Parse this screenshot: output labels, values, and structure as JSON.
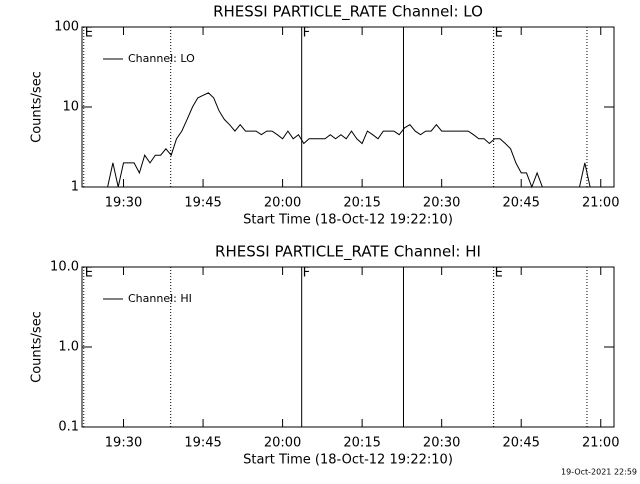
{
  "chart_data": [
    {
      "type": "line",
      "title": "RHESSI PARTICLE_RATE Channel: LO",
      "xlabel": "Start Time (18-Oct-12 19:22:10)",
      "ylabel": "Counts/sec",
      "log_y": true,
      "legend": "upper left",
      "xlim": [
        1162.17,
        1262.5
      ],
      "ylim": [
        1,
        100
      ],
      "xticks": [
        {
          "value": 1170,
          "label": "19:30"
        },
        {
          "value": 1185,
          "label": "19:45"
        },
        {
          "value": 1200,
          "label": "20:00"
        },
        {
          "value": 1215,
          "label": "20:15"
        },
        {
          "value": 1230,
          "label": "20:30"
        },
        {
          "value": 1245,
          "label": "20:45"
        },
        {
          "value": 1260,
          "label": "21:00"
        }
      ],
      "yticks": [
        1,
        10,
        100
      ],
      "annotations": [
        {
          "x": 1162.5,
          "label": "E",
          "line": "dotted"
        },
        {
          "x": 1178.9,
          "line": "dotted"
        },
        {
          "x": 1203.6,
          "label": "F",
          "line": "solid"
        },
        {
          "x": 1222.8,
          "line": "solid"
        },
        {
          "x": 1239.8,
          "label": "E",
          "line": "dotted"
        },
        {
          "x": 1257.4,
          "line": "dotted"
        }
      ],
      "series": [
        {
          "name": "Channel: LO",
          "color": "#000000",
          "x": [
            1163,
            1164,
            1165,
            1166,
            1167,
            1168,
            1169,
            1170,
            1171,
            1172,
            1173,
            1174,
            1175,
            1176,
            1177,
            1178,
            1179,
            1180,
            1181,
            1182,
            1183,
            1184,
            1185,
            1186,
            1187,
            1188,
            1189,
            1190,
            1191,
            1192,
            1193,
            1194,
            1195,
            1196,
            1197,
            1198,
            1199,
            1200,
            1201,
            1202,
            1203,
            1204,
            1205,
            1206,
            1207,
            1208,
            1209,
            1210,
            1211,
            1212,
            1213,
            1214,
            1215,
            1216,
            1217,
            1218,
            1219,
            1220,
            1221,
            1222,
            1223,
            1224,
            1225,
            1226,
            1227,
            1228,
            1229,
            1230,
            1231,
            1232,
            1233,
            1234,
            1235,
            1236,
            1237,
            1238,
            1239,
            1240,
            1241,
            1242,
            1243,
            1244,
            1245,
            1246,
            1247,
            1248,
            1249,
            1250,
            1251,
            1252,
            1253,
            1254,
            1255,
            1256,
            1257,
            1258,
            1259,
            1260
          ],
          "values": [
            1,
            1,
            1,
            1,
            1,
            2,
            1,
            2,
            2,
            2,
            1.5,
            2.5,
            2,
            2.5,
            2.5,
            3,
            2.5,
            4,
            5,
            7,
            10,
            13,
            14,
            15,
            13,
            9,
            7,
            6,
            5,
            6,
            5,
            5,
            5,
            4.5,
            5,
            5,
            4.5,
            4,
            5,
            4,
            4.5,
            3.5,
            4,
            4,
            4,
            4,
            4.5,
            4,
            4.5,
            4,
            5,
            4,
            3.5,
            5,
            4.5,
            4,
            5,
            5,
            5,
            4.5,
            5.5,
            6,
            5,
            4.5,
            5,
            5,
            6,
            5,
            5,
            5,
            5,
            5,
            5,
            4.5,
            4,
            4,
            3.5,
            4,
            4,
            3.5,
            3,
            2,
            1.5,
            1.5,
            1,
            1.5,
            1,
            1,
            1,
            1,
            1,
            1,
            1,
            1,
            2,
            1,
            1,
            1
          ]
        }
      ]
    },
    {
      "type": "line",
      "title": "RHESSI PARTICLE_RATE Channel: HI",
      "xlabel": "Start Time (18-Oct-12 19:22:10)",
      "ylabel": "Counts/sec",
      "log_y": true,
      "legend": "upper left",
      "xlim": [
        1162.17,
        1262.5
      ],
      "ylim": [
        0.1,
        10
      ],
      "xticks": [
        {
          "value": 1170,
          "label": "19:30"
        },
        {
          "value": 1185,
          "label": "19:45"
        },
        {
          "value": 1200,
          "label": "20:00"
        },
        {
          "value": 1215,
          "label": "20:15"
        },
        {
          "value": 1230,
          "label": "20:30"
        },
        {
          "value": 1245,
          "label": "20:45"
        },
        {
          "value": 1260,
          "label": "21:00"
        }
      ],
      "yticks": [
        0.1,
        {
          "value": 1,
          "label": "1.0"
        },
        {
          "value": 10,
          "label": "10.0"
        }
      ],
      "annotations": [
        {
          "x": 1162.5,
          "label": "E",
          "line": "dotted"
        },
        {
          "x": 1178.9,
          "line": "dotted"
        },
        {
          "x": 1203.6,
          "label": "F",
          "line": "solid"
        },
        {
          "x": 1222.8,
          "line": "solid"
        },
        {
          "x": 1239.8,
          "label": "E",
          "line": "dotted"
        },
        {
          "x": 1257.4,
          "line": "dotted"
        }
      ],
      "series": [
        {
          "name": "Channel: HI",
          "color": "#000000",
          "x": [],
          "values": []
        }
      ]
    }
  ],
  "footer": "19-Oct-2021 22:59"
}
